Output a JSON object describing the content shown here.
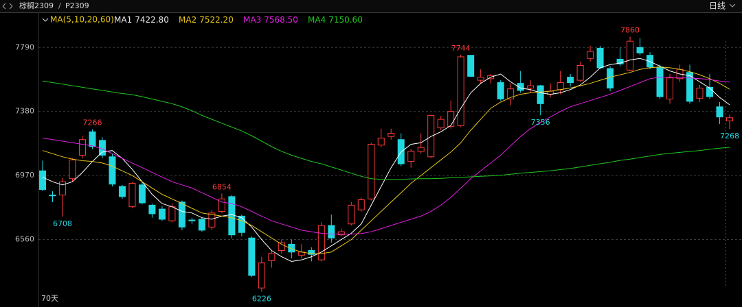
{
  "header": {
    "symbol": "棕榈2309",
    "separator": "/",
    "code": "P2309",
    "period": "日线"
  },
  "chart_data": {
    "type": "candlestick",
    "categories": [
      null,
      null,
      null,
      null,
      null,
      null,
      null,
      null,
      null,
      null,
      null,
      null,
      null,
      null,
      null,
      null,
      null,
      null,
      null,
      null,
      null,
      null,
      null,
      null,
      null,
      null,
      null,
      null,
      null,
      null,
      null,
      null,
      null,
      null,
      null,
      null,
      null,
      null,
      null,
      null,
      null,
      null,
      null,
      null,
      null,
      null,
      null,
      null,
      null,
      null,
      null,
      null,
      null,
      null,
      null,
      null,
      null,
      null,
      null,
      null,
      null,
      null,
      null,
      null,
      null,
      null,
      null,
      null,
      null,
      null
    ],
    "open": [
      7000,
      6845,
      6845,
      6950,
      7100,
      7250,
      7195,
      7090,
      6900,
      6770,
      6910,
      6780,
      6755,
      6680,
      6800,
      6685,
      6690,
      6640,
      6740,
      6835,
      6710,
      6570,
      6250,
      6425,
      6490,
      6530,
      6460,
      6490,
      6430,
      6650,
      6590,
      6660,
      6750,
      6820,
      7165,
      7220,
      7200,
      7060,
      7125,
      7090,
      7275,
      7285,
      7290,
      7740,
      7580,
      7590,
      7565,
      7460,
      7560,
      7530,
      7545,
      7490,
      7520,
      7600,
      7580,
      7720,
      7785,
      7655,
      7715,
      7645,
      7790,
      7740,
      7665,
      7460,
      7590,
      7630,
      7465,
      7535,
      7410,
      7320
    ],
    "high": [
      7065,
      6870,
      6955,
      7080,
      7220,
      7266,
      7215,
      7110,
      6910,
      6930,
      6930,
      6790,
      6775,
      6790,
      6810,
      6700,
      6700,
      6750,
      6854,
      6845,
      6720,
      6580,
      6450,
      6490,
      6560,
      6560,
      6530,
      6510,
      6670,
      6720,
      6630,
      6800,
      6830,
      7180,
      7270,
      7270,
      7240,
      7140,
      7240,
      7360,
      7350,
      7450,
      7744,
      7740,
      7650,
      7620,
      7580,
      7560,
      7640,
      7580,
      7550,
      7560,
      7640,
      7620,
      7700,
      7800,
      7800,
      7670,
      7790,
      7860,
      7850,
      7760,
      7680,
      7620,
      7680,
      7680,
      7550,
      7620,
      7440,
      7360
    ],
    "low": [
      6870,
      6800,
      6708,
      6930,
      7080,
      7140,
      7080,
      6900,
      6820,
      6760,
      6785,
      6700,
      6680,
      6670,
      6620,
      6660,
      6610,
      6620,
      6730,
      6570,
      6580,
      6320,
      6226,
      6380,
      6470,
      6440,
      6440,
      6420,
      6420,
      6540,
      6580,
      6650,
      6740,
      6810,
      7150,
      7200,
      7030,
      7020,
      7110,
      7080,
      7260,
      7270,
      7280,
      7600,
      7560,
      7560,
      7450,
      7420,
      7500,
      7500,
      7356,
      7470,
      7490,
      7540,
      7570,
      7700,
      7650,
      7510,
      7670,
      7640,
      7740,
      7650,
      7460,
      7430,
      7570,
      7430,
      7440,
      7460,
      7300,
      7268
    ],
    "close": [
      6880,
      6840,
      6930,
      7070,
      7200,
      7155,
      7100,
      6915,
      6835,
      6920,
      6795,
      6725,
      6690,
      6770,
      6640,
      6680,
      6620,
      6730,
      6820,
      6590,
      6605,
      6330,
      6410,
      6470,
      6540,
      6480,
      6480,
      6465,
      6650,
      6570,
      6610,
      6780,
      6815,
      7170,
      7210,
      7240,
      7045,
      7125,
      7150,
      7355,
      7330,
      7380,
      7730,
      7605,
      7600,
      7610,
      7460,
      7525,
      7515,
      7545,
      7430,
      7510,
      7565,
      7565,
      7675,
      7765,
      7660,
      7530,
      7685,
      7830,
      7755,
      7665,
      7475,
      7595,
      7650,
      7445,
      7530,
      7475,
      7345,
      7340
    ],
    "up_color": "#ff3b3b",
    "down_color": "#22d8e0",
    "ylim": [
      6128,
      8015
    ],
    "yticks": [
      6560,
      6970,
      7380,
      7790
    ],
    "grid": true,
    "legend_title": "MA(5,10,20,60)",
    "series": [
      {
        "name": "MA1",
        "last_label": "7422.80",
        "color": "#ffffff",
        "values": [
          6960,
          6930,
          6910,
          6930,
          6990,
          7060,
          7120,
          7130,
          7080,
          7010,
          6930,
          6850,
          6790,
          6770,
          6740,
          6730,
          6700,
          6690,
          6710,
          6720,
          6700,
          6640,
          6560,
          6490,
          6450,
          6420,
          6430,
          6450,
          6480,
          6520,
          6560,
          6600,
          6660,
          6780,
          6900,
          7020,
          7120,
          7170,
          7180,
          7220,
          7250,
          7290,
          7400,
          7500,
          7560,
          7600,
          7620,
          7570,
          7530,
          7520,
          7500,
          7490,
          7500,
          7520,
          7550,
          7600,
          7660,
          7680,
          7690,
          7710,
          7720,
          7700,
          7670,
          7640,
          7620,
          7610,
          7570,
          7530,
          7470,
          7422.8
        ]
      },
      {
        "name": "MA2",
        "last_label": "7522.20",
        "color": "#e6c619",
        "values": [
          7130,
          7110,
          7090,
          7075,
          7065,
          7060,
          7050,
          7030,
          7000,
          6970,
          6930,
          6890,
          6850,
          6820,
          6790,
          6760,
          6730,
          6720,
          6710,
          6700,
          6680,
          6650,
          6610,
          6570,
          6530,
          6500,
          6480,
          6470,
          6470,
          6480,
          6520,
          6560,
          6620,
          6680,
          6740,
          6800,
          6860,
          6920,
          6970,
          7020,
          7070,
          7120,
          7180,
          7260,
          7330,
          7400,
          7440,
          7470,
          7490,
          7500,
          7505,
          7510,
          7520,
          7530,
          7545,
          7560,
          7580,
          7600,
          7615,
          7630,
          7650,
          7660,
          7665,
          7660,
          7650,
          7635,
          7615,
          7590,
          7560,
          7522.2
        ]
      },
      {
        "name": "MA3",
        "last_label": "7568.50",
        "color": "#e21fe2",
        "values": [
          7210,
          7200,
          7190,
          7180,
          7170,
          7160,
          7140,
          7110,
          7080,
          7050,
          7020,
          6990,
          6960,
          6930,
          6910,
          6890,
          6860,
          6830,
          6800,
          6790,
          6770,
          6740,
          6710,
          6680,
          6660,
          6640,
          6620,
          6610,
          6600,
          6595,
          6595,
          6595,
          6598,
          6610,
          6630,
          6650,
          6670,
          6690,
          6710,
          6740,
          6780,
          6830,
          6890,
          6950,
          7000,
          7050,
          7100,
          7160,
          7220,
          7270,
          7310,
          7345,
          7380,
          7410,
          7430,
          7450,
          7470,
          7490,
          7515,
          7540,
          7565,
          7590,
          7600,
          7600,
          7595,
          7595,
          7590,
          7585,
          7575,
          7568.5
        ]
      },
      {
        "name": "MA4",
        "last_label": "7150.60",
        "color": "#1fc91f",
        "values": [
          7575,
          7565,
          7555,
          7545,
          7535,
          7525,
          7515,
          7505,
          7495,
          7488,
          7475,
          7460,
          7445,
          7430,
          7410,
          7385,
          7355,
          7330,
          7305,
          7280,
          7255,
          7225,
          7190,
          7155,
          7125,
          7100,
          7080,
          7060,
          7045,
          7025,
          7005,
          6985,
          6965,
          6950,
          6945,
          6945,
          6945,
          6948,
          6950,
          6950,
          6952,
          6955,
          6958,
          6962,
          6965,
          6968,
          6972,
          6978,
          6985,
          6990,
          6995,
          7000,
          7008,
          7015,
          7025,
          7035,
          7045,
          7055,
          7067,
          7075,
          7085,
          7095,
          7105,
          7112,
          7118,
          7124,
          7130,
          7138,
          7145,
          7150.6
        ]
      }
    ],
    "annotations": [
      {
        "index": 5,
        "field": "high"
      },
      {
        "index": 2,
        "field": "low"
      },
      {
        "index": 18,
        "field": "high"
      },
      {
        "index": 22,
        "field": "low"
      },
      {
        "index": 42,
        "field": "high"
      },
      {
        "index": 50,
        "field": "low"
      },
      {
        "index": 59,
        "field": "high"
      },
      {
        "index": 69,
        "field": "low"
      }
    ],
    "footer": "70天"
  }
}
